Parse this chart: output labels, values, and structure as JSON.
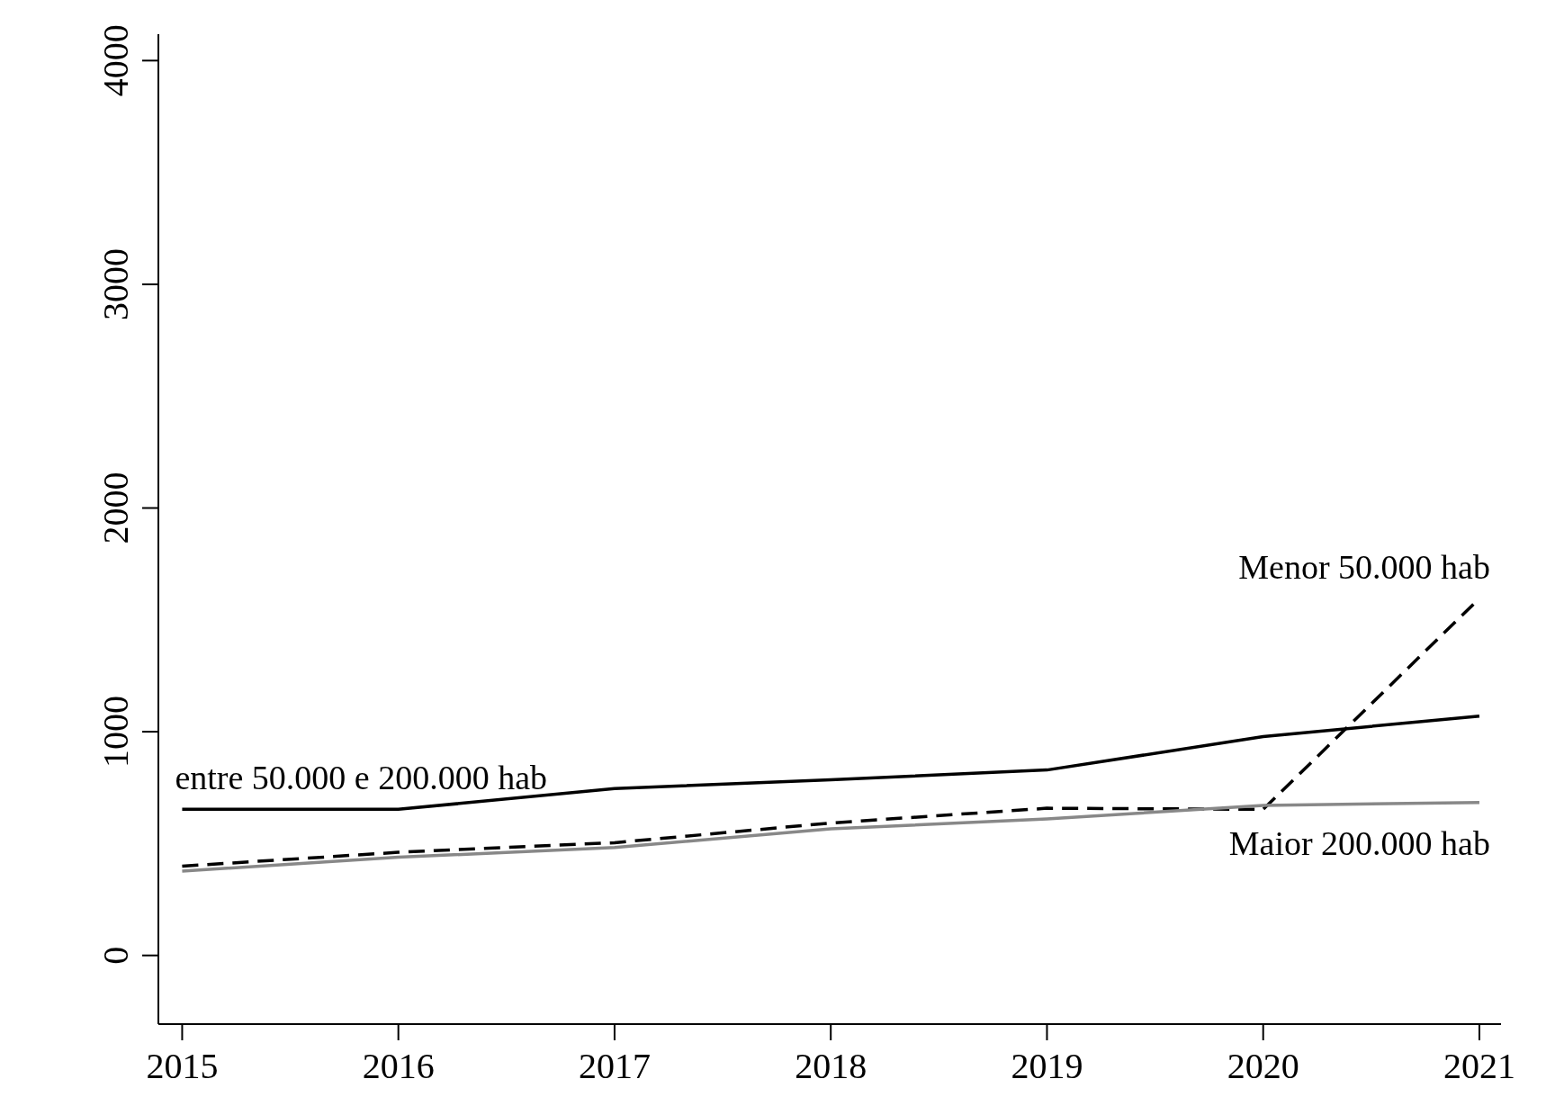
{
  "chart_data": {
    "type": "line",
    "x": [
      2015,
      2016,
      2017,
      2018,
      2019,
      2020,
      2021
    ],
    "series": [
      {
        "color": "#000000",
        "line_style": "dashed",
        "values": [
          399,
          461,
          504,
          592,
          658,
          653,
          1596
        ]
      },
      {
        "color": "#000000",
        "line_style": "solid",
        "values": [
          653,
          653,
          746,
          785,
          829,
          978,
          1070
        ]
      },
      {
        "color": "#888888",
        "line_style": "solid",
        "values": [
          377,
          439,
          482,
          566,
          610,
          671,
          684
        ]
      }
    ],
    "annotations": [
      "Menor 50.000 hab",
      "entre 50.000 e 200.000 hab",
      "Maior 200.000 hab"
    ],
    "xlim": [
      2014.89,
      2021.1
    ],
    "xticks": [
      2015,
      2016,
      2017,
      2018,
      2019,
      2020,
      2021
    ],
    "ylim": [
      -307,
      4118
    ],
    "yticks": [
      0,
      1000,
      2000,
      3000,
      4000
    ],
    "grid": false,
    "legend": false,
    "marker": "none"
  }
}
